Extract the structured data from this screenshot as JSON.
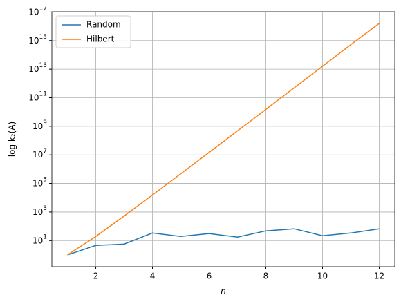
{
  "chart_data": {
    "type": "line",
    "xlabel": "n",
    "ylabel": "log k₂(A)",
    "log_y": true,
    "grid": true,
    "legend": "upper left",
    "x": [
      1,
      2,
      3,
      4,
      5,
      6,
      7,
      8,
      9,
      10,
      11,
      12
    ],
    "series": [
      {
        "name": "Random",
        "color": "#1f77b4",
        "values": [
          1,
          4.6,
          5.7,
          34,
          19.5,
          31,
          17.5,
          48,
          67,
          22,
          34,
          67
        ]
      },
      {
        "name": "Hilbert",
        "color": "#ff7f0e",
        "values": [
          1,
          19.28,
          524.06,
          15514,
          476607,
          14951000,
          475370000,
          15258000000,
          493150000000,
          16025000000000,
          522020000000000,
          16000000000000000
        ]
      }
    ],
    "xlim": [
      0.45,
      12.55
    ],
    "ylim": [
      0.15,
      1.05e+17
    ],
    "xticks": [
      2,
      4,
      6,
      8,
      10,
      12
    ],
    "yticks": [
      {
        "value": 10,
        "label": "10^1"
      },
      {
        "value": 1000,
        "label": "10^3"
      },
      {
        "value": 100000,
        "label": "10^5"
      },
      {
        "value": 10000000,
        "label": "10^7"
      },
      {
        "value": 1000000000,
        "label": "10^9"
      },
      {
        "value": 100000000000,
        "label": "10^11"
      },
      {
        "value": 10000000000000,
        "label": "10^13"
      },
      {
        "value": 1000000000000000,
        "label": "10^15"
      },
      {
        "value": 100000000000000000,
        "label": "10^17"
      }
    ]
  }
}
